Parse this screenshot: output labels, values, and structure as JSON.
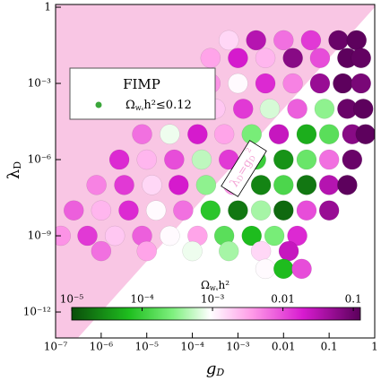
{
  "chart_data": {
    "type": "scatter",
    "xlabel": {
      "main": "g",
      "sub": "D"
    },
    "ylabel": {
      "main": "λ",
      "sub": "D"
    },
    "xscale": "log",
    "yscale": "log",
    "xlim": [
      1e-07,
      1
    ],
    "ylim": [
      9.5e-14,
      1.28
    ],
    "xticks": [
      {
        "value": 1e-07,
        "label": "10⁻⁷"
      },
      {
        "value": 1e-06,
        "label": "10⁻⁶"
      },
      {
        "value": 1e-05,
        "label": "10⁻⁵"
      },
      {
        "value": 0.0001,
        "label": "10⁻⁴"
      },
      {
        "value": 0.001,
        "label": "10⁻³"
      },
      0.01,
      0.1,
      1
    ],
    "yticks": [
      {
        "value": 1e-12,
        "label": "10⁻¹²"
      },
      {
        "value": 1e-09,
        "label": "10⁻⁹"
      },
      {
        "value": 1e-06,
        "label": "10⁻⁶"
      },
      {
        "value": 0.001,
        "label": "10⁻³"
      },
      1
    ],
    "excluded_color": "#f9c6e4",
    "annotation": {
      "pre": "λ",
      "sub1": "D",
      "mid": "=g",
      "sub2": "D",
      "sup": "2"
    },
    "legend": {
      "title": "FIMP",
      "pre": "Ω",
      "sub": "wₛ",
      "post": "h²≤0.12",
      "color": "#3aa63a"
    },
    "colorbar": {
      "pre": "Ω",
      "sub": "wₛ",
      "post": "h²",
      "lim": [
        1e-05,
        0.126
      ],
      "ticks": [
        {
          "value": 1e-05,
          "label": "10⁻⁵"
        },
        {
          "value": 0.0001,
          "label": "10⁻⁴"
        },
        {
          "value": 0.001,
          "label": "10⁻³"
        },
        0.01,
        0.1
      ]
    },
    "series": [
      {
        "x": [
          0.00063,
          0.0025,
          0.01,
          0.04,
          0.16,
          0.4,
          0.00025,
          0.001,
          0.004,
          0.016,
          0.063,
          0.25,
          0.5,
          6.3e-05,
          0.00025,
          0.001,
          0.004,
          0.016,
          0.063,
          0.2,
          0.5,
          2e-05,
          7.9e-05,
          0.00032,
          0.0013,
          0.005,
          0.02,
          0.079,
          0.25,
          0.56,
          7.9e-06,
          3.2e-05,
          0.00013,
          0.0005,
          0.002,
          0.0079,
          0.032,
          0.1,
          0.32,
          0.63,
          2.5e-06,
          1e-05,
          4e-05,
          0.00016,
          0.00063,
          0.0025,
          0.01,
          0.032,
          0.1,
          0.32,
          7.9e-07,
          3.2e-06,
          1.3e-05,
          5e-05,
          0.0002,
          0.00079,
          0.0032,
          0.01,
          0.032,
          0.1,
          0.25,
          2.5e-07,
          1e-06,
          4e-06,
          1.6e-05,
          6.3e-05,
          0.00025,
          0.001,
          0.0032,
          0.01,
          0.032,
          0.1,
          1.3e-07,
          5e-07,
          2e-06,
          7.9e-06,
          3.2e-05,
          0.00013,
          0.0005,
          0.002,
          0.0063,
          0.02,
          1e-06,
          1e-05,
          0.0001,
          0.00063,
          0.0032,
          0.013,
          0.004,
          0.01,
          0.025
        ],
        "y": [
          0.05,
          0.05,
          0.05,
          0.05,
          0.05,
          0.05,
          0.01,
          0.01,
          0.01,
          0.01,
          0.01,
          0.01,
          0.01,
          0.001,
          0.001,
          0.001,
          0.001,
          0.001,
          0.001,
          0.001,
          0.001,
          0.0001,
          0.0001,
          0.0001,
          0.0001,
          0.0001,
          0.0001,
          0.0001,
          0.0001,
          0.0001,
          1e-05,
          1e-05,
          1e-05,
          1e-05,
          1e-05,
          1e-05,
          1e-05,
          1e-05,
          1e-05,
          1e-05,
          1e-06,
          1e-06,
          1e-06,
          1e-06,
          1e-06,
          1e-06,
          1e-06,
          1e-06,
          1e-06,
          1e-06,
          1e-07,
          1e-07,
          1e-07,
          1e-07,
          1e-07,
          1e-07,
          1e-07,
          1e-07,
          1e-07,
          1e-07,
          1e-07,
          1e-08,
          1e-08,
          1e-08,
          1e-08,
          1e-08,
          1e-08,
          1e-08,
          1e-08,
          1e-08,
          1e-08,
          1e-08,
          1e-09,
          1e-09,
          1e-09,
          1e-09,
          1e-09,
          1e-09,
          1e-09,
          1e-09,
          1e-09,
          1e-09,
          2.5e-10,
          2.5e-10,
          2.5e-10,
          2.5e-10,
          2.5e-10,
          2.5e-10,
          5e-11,
          5e-11,
          5e-11
        ],
        "omega": [
          0.0016,
          0.032,
          0.0063,
          0.013,
          0.1,
          0.12,
          0.0032,
          0.02,
          0.0025,
          0.063,
          0.01,
          0.12,
          0.11,
          0.025,
          0.004,
          0.001,
          0.016,
          0.005,
          0.05,
          0.12,
          0.079,
          0.01,
          0.04,
          0.002,
          0.013,
          0.00063,
          0.0079,
          0.00032,
          0.1,
          0.12,
          0.0063,
          0.00079,
          0.02,
          0.0032,
          0.00025,
          0.025,
          5e-05,
          0.00016,
          0.063,
          0.12,
          0.016,
          0.0025,
          0.01,
          0.0005,
          0.013,
          0.0001,
          3.2e-05,
          0.0002,
          0.0063,
          0.1,
          0.005,
          0.013,
          0.0016,
          0.02,
          0.00032,
          0.004,
          2.5e-05,
          0.00013,
          2e-05,
          0.032,
          0.12,
          0.0079,
          0.0025,
          0.016,
          0.001,
          0.0063,
          7.9e-05,
          2e-05,
          0.0004,
          1.6e-05,
          0.01,
          0.05,
          0.004,
          0.013,
          0.002,
          0.0079,
          0.001,
          0.0032,
          0.00016,
          6.3e-05,
          0.00025,
          0.016,
          0.0063,
          0.0032,
          0.00079,
          0.0004,
          0.0016,
          0.025,
          0.001,
          6.3e-05,
          0.01
        ]
      }
    ]
  }
}
